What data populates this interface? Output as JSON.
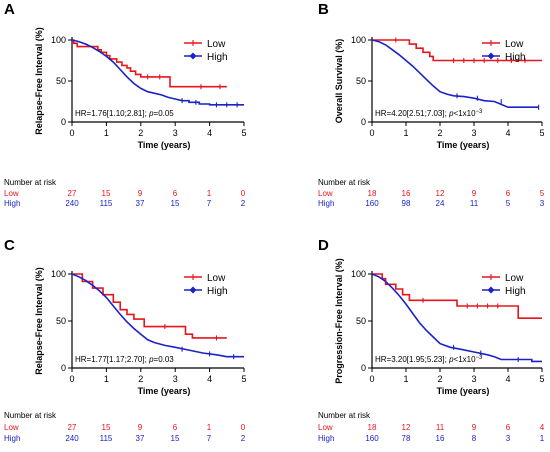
{
  "colors": {
    "low": "#e8141b",
    "high": "#1a22c8",
    "axis": "#000000",
    "text": "#000000"
  },
  "chart_data": [
    {
      "type": "line",
      "panel_label": "A",
      "xlabel": "Time (years)",
      "ylabel": "Relapse-Free Interval (%)",
      "xlim": [
        0,
        5
      ],
      "ylim": [
        0,
        100
      ],
      "xticks": [
        0,
        1,
        2,
        3,
        4,
        5
      ],
      "yticks": [
        0,
        50,
        100
      ],
      "xtick_labels": [
        "0",
        "1",
        "2",
        "3",
        "4",
        "5"
      ],
      "ytick_labels": [
        "0",
        "50",
        "100"
      ],
      "annotation": {
        "prefix": "HR=1.76[1.10;2.81]; ",
        "pvar": "p",
        "pval": "=0.05",
        "psup": ""
      },
      "legend_position": "top-right",
      "series": [
        {
          "name": "Low",
          "key": "low",
          "steps": [
            [
              0,
              100
            ],
            [
              0.05,
              100
            ],
            [
              0.05,
              96
            ],
            [
              0.15,
              96
            ],
            [
              0.15,
              92
            ],
            [
              0.75,
              92
            ],
            [
              0.75,
              88
            ],
            [
              0.85,
              88
            ],
            [
              0.85,
              85
            ],
            [
              1.0,
              85
            ],
            [
              1.0,
              81
            ],
            [
              1.1,
              81
            ],
            [
              1.1,
              77
            ],
            [
              1.3,
              77
            ],
            [
              1.3,
              73
            ],
            [
              1.45,
              73
            ],
            [
              1.45,
              69
            ],
            [
              1.6,
              69
            ],
            [
              1.6,
              66
            ],
            [
              1.7,
              66
            ],
            [
              1.7,
              62
            ],
            [
              1.85,
              62
            ],
            [
              1.85,
              58
            ],
            [
              2.0,
              58
            ],
            [
              2.0,
              55
            ],
            [
              2.85,
              55
            ],
            [
              2.85,
              43
            ],
            [
              4.5,
              43
            ]
          ],
          "censor": [
            [
              2.2,
              55
            ],
            [
              2.55,
              55
            ],
            [
              3.75,
              43
            ],
            [
              4.3,
              43
            ]
          ]
        },
        {
          "name": "High",
          "key": "high",
          "steps": [
            [
              0,
              100
            ],
            [
              0.2,
              98
            ],
            [
              0.4,
              95
            ],
            [
              0.6,
              91
            ],
            [
              0.8,
              86
            ],
            [
              1.0,
              80
            ],
            [
              1.2,
              73
            ],
            [
              1.4,
              64
            ],
            [
              1.6,
              55
            ],
            [
              1.8,
              47
            ],
            [
              2.0,
              41
            ],
            [
              2.2,
              37
            ],
            [
              2.4,
              35
            ],
            [
              2.6,
              33
            ],
            [
              2.8,
              30
            ],
            [
              3.0,
              28
            ],
            [
              3.2,
              26
            ],
            [
              3.4,
              26
            ],
            [
              3.4,
              24
            ],
            [
              3.7,
              24
            ],
            [
              3.7,
              22
            ],
            [
              4.0,
              22
            ],
            [
              4.0,
              21
            ],
            [
              5.0,
              21
            ]
          ],
          "censor": [
            [
              3.2,
              26
            ],
            [
              3.6,
              24
            ],
            [
              4.2,
              21
            ],
            [
              4.5,
              21
            ],
            [
              4.8,
              21
            ]
          ]
        }
      ],
      "risk_table": {
        "title": "Number at risk",
        "rows": [
          {
            "name": "Low",
            "key": "low",
            "values": [
              "27",
              "15",
              "9",
              "6",
              "1",
              "0"
            ]
          },
          {
            "name": "High",
            "key": "high",
            "values": [
              "240",
              "115",
              "37",
              "15",
              "7",
              "2"
            ]
          }
        ]
      }
    },
    {
      "type": "line",
      "panel_label": "B",
      "xlabel": "Time (years)",
      "ylabel": "Overall Survival (%)",
      "xlim": [
        0,
        5
      ],
      "ylim": [
        0,
        100
      ],
      "xticks": [
        0,
        1,
        2,
        3,
        4,
        5
      ],
      "yticks": [
        0,
        50,
        100
      ],
      "xtick_labels": [
        "0",
        "1",
        "2",
        "3",
        "4",
        "5"
      ],
      "ytick_labels": [
        "0",
        "50",
        "100"
      ],
      "annotation": {
        "prefix": "HR=4.20[2.51;7.03]; ",
        "pvar": "p",
        "pval": "<1x10",
        "psup": "−3"
      },
      "legend_position": "top-right",
      "series": [
        {
          "name": "Low",
          "key": "low",
          "steps": [
            [
              0,
              100
            ],
            [
              1.1,
              100
            ],
            [
              1.1,
              95
            ],
            [
              1.3,
              95
            ],
            [
              1.3,
              90
            ],
            [
              1.5,
              90
            ],
            [
              1.5,
              85
            ],
            [
              1.7,
              85
            ],
            [
              1.7,
              80
            ],
            [
              1.8,
              80
            ],
            [
              1.8,
              75
            ],
            [
              5.0,
              75
            ]
          ],
          "censor": [
            [
              0.7,
              100
            ],
            [
              2.4,
              75
            ],
            [
              2.7,
              75
            ],
            [
              3.0,
              75
            ],
            [
              3.3,
              75
            ],
            [
              3.7,
              75
            ],
            [
              4.1,
              75
            ],
            [
              4.5,
              75
            ]
          ]
        },
        {
          "name": "High",
          "key": "high",
          "steps": [
            [
              0,
              100
            ],
            [
              0.2,
              98
            ],
            [
              0.4,
              94
            ],
            [
              0.6,
              88
            ],
            [
              0.8,
              82
            ],
            [
              1.0,
              75
            ],
            [
              1.2,
              68
            ],
            [
              1.4,
              60
            ],
            [
              1.6,
              52
            ],
            [
              1.8,
              44
            ],
            [
              2.0,
              37
            ],
            [
              2.2,
              34
            ],
            [
              2.4,
              32
            ],
            [
              2.7,
              31
            ],
            [
              3.0,
              29
            ],
            [
              3.3,
              26
            ],
            [
              3.6,
              25
            ],
            [
              4.0,
              18
            ],
            [
              4.9,
              18
            ]
          ],
          "censor": [
            [
              2.5,
              32
            ],
            [
              3.1,
              29
            ],
            [
              3.8,
              25
            ],
            [
              4.9,
              18
            ]
          ]
        }
      ],
      "risk_table": {
        "title": "Number at risk",
        "rows": [
          {
            "name": "Low",
            "key": "low",
            "values": [
              "18",
              "16",
              "12",
              "9",
              "6",
              "5"
            ]
          },
          {
            "name": "High",
            "key": "high",
            "values": [
              "160",
              "98",
              "24",
              "11",
              "5",
              "3"
            ]
          }
        ]
      }
    },
    {
      "type": "line",
      "panel_label": "C",
      "xlabel": "Time (years)",
      "ylabel": "Relapse-Free Interval (%)",
      "xlim": [
        0,
        5
      ],
      "ylim": [
        0,
        100
      ],
      "xticks": [
        0,
        1,
        2,
        3,
        4,
        5
      ],
      "yticks": [
        0,
        50,
        100
      ],
      "xtick_labels": [
        "0",
        "1",
        "2",
        "3",
        "4",
        "5"
      ],
      "ytick_labels": [
        "0",
        "50",
        "100"
      ],
      "annotation": {
        "prefix": "HR=1.77[1.17;2.70]; ",
        "pvar": "p",
        "pval": "=0.03",
        "psup": ""
      },
      "legend_position": "top-right",
      "series": [
        {
          "name": "Low",
          "key": "low",
          "steps": [
            [
              0,
              100
            ],
            [
              0.3,
              100
            ],
            [
              0.3,
              92
            ],
            [
              0.6,
              92
            ],
            [
              0.6,
              85
            ],
            [
              0.9,
              85
            ],
            [
              0.9,
              78
            ],
            [
              1.2,
              78
            ],
            [
              1.2,
              70
            ],
            [
              1.4,
              70
            ],
            [
              1.4,
              62
            ],
            [
              1.6,
              62
            ],
            [
              1.6,
              57
            ],
            [
              1.8,
              57
            ],
            [
              1.8,
              52
            ],
            [
              2.1,
              52
            ],
            [
              2.1,
              44
            ],
            [
              3.3,
              44
            ],
            [
              3.3,
              36
            ],
            [
              3.5,
              36
            ],
            [
              3.5,
              32
            ],
            [
              4.5,
              32
            ]
          ],
          "censor": [
            [
              2.7,
              44
            ],
            [
              4.2,
              32
            ]
          ]
        },
        {
          "name": "High",
          "key": "high",
          "steps": [
            [
              0,
              100
            ],
            [
              0.2,
              97
            ],
            [
              0.4,
              93
            ],
            [
              0.6,
              88
            ],
            [
              0.8,
              82
            ],
            [
              1.0,
              75
            ],
            [
              1.2,
              66
            ],
            [
              1.4,
              57
            ],
            [
              1.6,
              49
            ],
            [
              1.8,
              42
            ],
            [
              2.0,
              36
            ],
            [
              2.2,
              30
            ],
            [
              2.4,
              27
            ],
            [
              2.7,
              24
            ],
            [
              3.0,
              22
            ],
            [
              3.4,
              19
            ],
            [
              3.8,
              16
            ],
            [
              4.2,
              14
            ],
            [
              4.5,
              12
            ],
            [
              5.0,
              12
            ]
          ],
          "censor": [
            [
              3.2,
              20
            ],
            [
              4.0,
              15
            ],
            [
              4.7,
              12
            ]
          ]
        }
      ],
      "risk_table": {
        "title": "Number at risk",
        "rows": [
          {
            "name": "Low",
            "key": "low",
            "values": [
              "27",
              "15",
              "9",
              "6",
              "1",
              "0"
            ]
          },
          {
            "name": "High",
            "key": "high",
            "values": [
              "240",
              "115",
              "37",
              "15",
              "7",
              "2"
            ]
          }
        ]
      }
    },
    {
      "type": "line",
      "panel_label": "D",
      "xlabel": "Time (years)",
      "ylabel": "Progression-Free Interval (%)",
      "xlim": [
        0,
        5
      ],
      "ylim": [
        0,
        100
      ],
      "xticks": [
        0,
        1,
        2,
        3,
        4,
        5
      ],
      "yticks": [
        0,
        50,
        100
      ],
      "xtick_labels": [
        "0",
        "1",
        "2",
        "3",
        "4",
        "5"
      ],
      "ytick_labels": [
        "0",
        "50",
        "100"
      ],
      "annotation": {
        "prefix": "HR=3.20[1.95;5.23]; ",
        "pvar": "p",
        "pval": "<1x10",
        "psup": "−3"
      },
      "legend_position": "top-right",
      "series": [
        {
          "name": "Low",
          "key": "low",
          "steps": [
            [
              0,
              100
            ],
            [
              0.3,
              100
            ],
            [
              0.3,
              95
            ],
            [
              0.4,
              95
            ],
            [
              0.4,
              89
            ],
            [
              0.7,
              89
            ],
            [
              0.7,
              84
            ],
            [
              0.9,
              84
            ],
            [
              0.9,
              78
            ],
            [
              1.1,
              78
            ],
            [
              1.1,
              72
            ],
            [
              2.5,
              72
            ],
            [
              2.5,
              66
            ],
            [
              4.3,
              66
            ],
            [
              4.3,
              53
            ],
            [
              5.0,
              53
            ]
          ],
          "censor": [
            [
              1.5,
              72
            ],
            [
              2.8,
              66
            ],
            [
              3.1,
              66
            ],
            [
              3.4,
              66
            ],
            [
              3.7,
              66
            ]
          ]
        },
        {
          "name": "High",
          "key": "high",
          "steps": [
            [
              0,
              100
            ],
            [
              0.2,
              97
            ],
            [
              0.4,
              92
            ],
            [
              0.6,
              85
            ],
            [
              0.8,
              77
            ],
            [
              1.0,
              68
            ],
            [
              1.2,
              58
            ],
            [
              1.4,
              48
            ],
            [
              1.6,
              40
            ],
            [
              1.8,
              33
            ],
            [
              2.0,
              26
            ],
            [
              2.3,
              22
            ],
            [
              2.6,
              20
            ],
            [
              3.0,
              17
            ],
            [
              3.4,
              14
            ],
            [
              3.6,
              12
            ],
            [
              3.8,
              9
            ],
            [
              4.7,
              9
            ],
            [
              4.7,
              7
            ],
            [
              5.0,
              7
            ]
          ],
          "censor": [
            [
              2.4,
              22
            ],
            [
              3.2,
              16
            ],
            [
              4.3,
              9
            ]
          ]
        }
      ],
      "risk_table": {
        "title": "Number at risk",
        "rows": [
          {
            "name": "Low",
            "key": "low",
            "values": [
              "18",
              "12",
              "11",
              "9",
              "6",
              "4"
            ]
          },
          {
            "name": "High",
            "key": "high",
            "values": [
              "160",
              "78",
              "16",
              "8",
              "3",
              "1"
            ]
          }
        ]
      }
    }
  ]
}
